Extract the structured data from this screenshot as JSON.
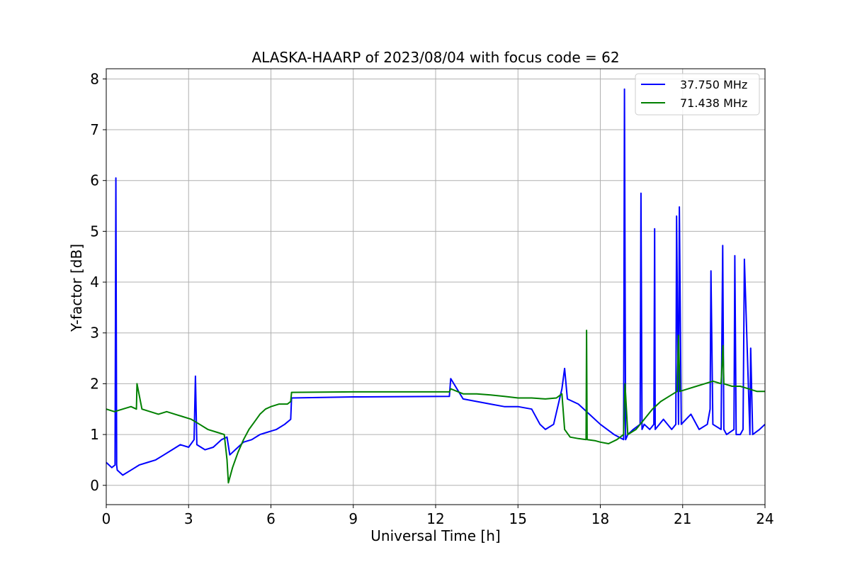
{
  "chart_data": {
    "type": "line",
    "title": "ALASKA-HAARP of 2023/08/04 with focus code = 62",
    "xlabel": "Universal Time [h]",
    "ylabel": "Y-factor [dB]",
    "xlim": [
      0,
      24
    ],
    "ylim": [
      -0.38,
      8.2
    ],
    "xticks": [
      0,
      3,
      6,
      9,
      12,
      15,
      18,
      21,
      24
    ],
    "yticks": [
      0,
      1,
      2,
      3,
      4,
      5,
      6,
      7,
      8
    ],
    "grid": true,
    "legend_position": "top-right",
    "series": [
      {
        "name": "37.750 MHz",
        "color": "#0000ff",
        "x": [
          0,
          0.2,
          0.32,
          0.35,
          0.38,
          0.4,
          0.6,
          0.9,
          1.2,
          1.5,
          1.8,
          2.1,
          2.4,
          2.7,
          3.0,
          3.2,
          3.25,
          3.3,
          3.6,
          3.9,
          4.2,
          4.4,
          4.5,
          4.7,
          5.0,
          5.3,
          5.6,
          5.9,
          6.2,
          6.5,
          6.72,
          6.75,
          9.0,
          12.5,
          12.55,
          13.0,
          13.5,
          14.0,
          14.5,
          15.0,
          15.5,
          15.8,
          16.0,
          16.3,
          16.6,
          16.7,
          16.8,
          17.2,
          17.6,
          18.0,
          18.5,
          18.85,
          18.88,
          18.92,
          19.0,
          19.2,
          19.45,
          19.48,
          19.52,
          19.6,
          19.8,
          19.95,
          19.98,
          20.0,
          20.3,
          20.6,
          20.75,
          20.78,
          20.85,
          20.88,
          20.95,
          21.3,
          21.6,
          21.9,
          22.0,
          22.03,
          22.1,
          22.4,
          22.46,
          22.5,
          22.6,
          22.87,
          22.9,
          22.95,
          23.1,
          23.2,
          23.25,
          23.45,
          23.48,
          23.55,
          23.8,
          24.0
        ],
        "values": [
          0.45,
          0.35,
          0.4,
          6.05,
          0.4,
          0.3,
          0.2,
          0.3,
          0.4,
          0.45,
          0.5,
          0.6,
          0.7,
          0.8,
          0.75,
          0.9,
          2.15,
          0.8,
          0.7,
          0.75,
          0.9,
          0.95,
          0.6,
          0.7,
          0.85,
          0.9,
          1.0,
          1.05,
          1.1,
          1.2,
          1.3,
          1.72,
          1.74,
          1.75,
          2.1,
          1.7,
          1.65,
          1.6,
          1.55,
          1.55,
          1.5,
          1.2,
          1.1,
          1.2,
          1.9,
          2.3,
          1.7,
          1.6,
          1.4,
          1.2,
          1.0,
          0.9,
          7.8,
          0.9,
          1.0,
          1.1,
          1.2,
          5.75,
          1.1,
          1.2,
          1.1,
          1.2,
          5.05,
          1.1,
          1.3,
          1.1,
          1.2,
          5.3,
          1.2,
          5.48,
          1.2,
          1.4,
          1.1,
          1.2,
          1.5,
          4.22,
          1.2,
          1.1,
          4.72,
          1.1,
          1.0,
          1.1,
          4.52,
          1.0,
          1.0,
          1.1,
          4.45,
          1.0,
          2.7,
          1.0,
          1.1,
          1.2
        ]
      },
      {
        "name": "71.438 MHz",
        "color": "#008000",
        "x": [
          0,
          0.3,
          0.6,
          0.9,
          1.1,
          1.12,
          1.3,
          1.6,
          1.9,
          2.2,
          2.5,
          2.8,
          3.1,
          3.4,
          3.7,
          4.0,
          4.3,
          4.4,
          4.45,
          4.6,
          4.8,
          5.0,
          5.2,
          5.4,
          5.6,
          5.8,
          6.0,
          6.3,
          6.6,
          6.72,
          6.75,
          9.0,
          12.5,
          12.55,
          13.0,
          13.5,
          14.0,
          14.5,
          15.0,
          15.5,
          16.0,
          16.4,
          16.6,
          16.7,
          16.9,
          17.2,
          17.48,
          17.5,
          17.52,
          17.8,
          18.0,
          18.3,
          18.6,
          18.85,
          18.9,
          19.0,
          19.3,
          19.6,
          19.9,
          20.2,
          20.5,
          20.8,
          20.85,
          20.9,
          21.2,
          21.5,
          21.8,
          22.1,
          22.4,
          22.47,
          22.5,
          22.8,
          23.1,
          23.4,
          23.7,
          24.0
        ],
        "values": [
          1.5,
          1.45,
          1.5,
          1.55,
          1.5,
          2.0,
          1.5,
          1.45,
          1.4,
          1.45,
          1.4,
          1.35,
          1.3,
          1.2,
          1.1,
          1.05,
          1.0,
          0.5,
          0.05,
          0.35,
          0.65,
          0.9,
          1.1,
          1.25,
          1.4,
          1.5,
          1.55,
          1.6,
          1.6,
          1.65,
          1.83,
          1.84,
          1.84,
          1.9,
          1.8,
          1.8,
          1.78,
          1.75,
          1.72,
          1.72,
          1.7,
          1.72,
          1.8,
          1.1,
          0.95,
          0.92,
          0.9,
          3.05,
          0.9,
          0.88,
          0.85,
          0.82,
          0.9,
          1.0,
          2.0,
          1.0,
          1.1,
          1.3,
          1.5,
          1.65,
          1.75,
          1.85,
          2.95,
          1.85,
          1.9,
          1.95,
          2.0,
          2.05,
          2.0,
          2.75,
          2.0,
          1.95,
          1.95,
          1.9,
          1.85,
          1.85
        ]
      }
    ]
  }
}
